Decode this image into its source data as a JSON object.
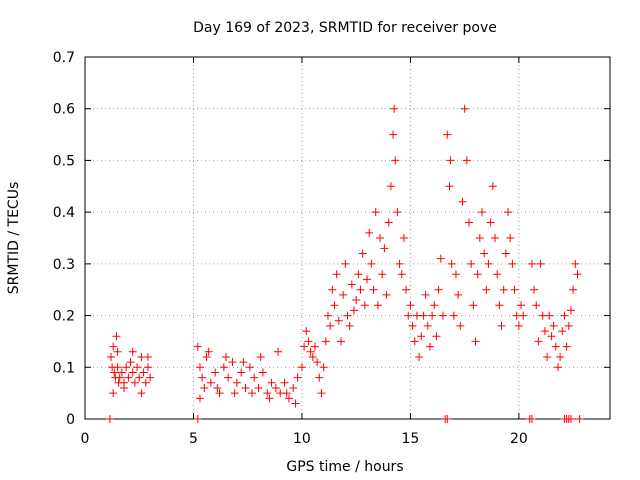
{
  "chart_data": {
    "type": "scatter",
    "title": "Day 169 of 2023, SRMTID for receiver pove",
    "xlabel": "GPS time / hours",
    "ylabel": "SRMTID / TECUs",
    "xlim": [
      0,
      24.2
    ],
    "ylim": [
      0,
      0.7
    ],
    "xticks": [
      0,
      5,
      10,
      15,
      20
    ],
    "yticks": [
      0,
      0.1,
      0.2,
      0.3,
      0.4,
      0.5,
      0.6,
      0.7
    ],
    "grid": true,
    "marker": "+",
    "color": "#ff0000",
    "series": [
      {
        "name": "SRMTID",
        "x": [
          1.2,
          1.25,
          1.3,
          1.35,
          1.4,
          1.45,
          1.5,
          1.55,
          1.6,
          1.7,
          1.8,
          1.9,
          2.0,
          2.1,
          2.2,
          2.3,
          2.4,
          2.5,
          2.6,
          2.7,
          2.8,
          2.9,
          3.0,
          1.3,
          1.5,
          1.8,
          2.2,
          2.6,
          2.9,
          5.2,
          5.3,
          5.4,
          5.5,
          5.6,
          5.8,
          6.0,
          6.2,
          6.4,
          6.6,
          6.8,
          7.0,
          7.2,
          7.4,
          7.6,
          7.8,
          8.0,
          8.2,
          8.4,
          8.6,
          8.8,
          9.0,
          9.2,
          9.4,
          9.6,
          9.8,
          5.3,
          5.7,
          6.1,
          6.5,
          6.9,
          7.3,
          7.7,
          8.1,
          8.5,
          8.9,
          9.3,
          9.7,
          10.0,
          10.1,
          10.2,
          10.3,
          10.4,
          10.5,
          10.6,
          10.7,
          10.8,
          10.9,
          11.0,
          11.1,
          11.2,
          11.3,
          11.4,
          11.5,
          11.6,
          11.7,
          11.8,
          11.9,
          12.0,
          12.1,
          12.2,
          12.3,
          12.4,
          12.5,
          12.6,
          12.7,
          12.8,
          12.9,
          13.0,
          13.1,
          13.2,
          13.3,
          13.4,
          13.5,
          13.6,
          13.7,
          13.8,
          13.9,
          14.0,
          14.1,
          14.2,
          14.25,
          14.3,
          14.4,
          14.5,
          14.6,
          14.7,
          14.8,
          14.9,
          15.0,
          15.1,
          15.2,
          15.3,
          15.4,
          15.5,
          15.6,
          15.7,
          15.8,
          15.9,
          16.0,
          16.1,
          16.2,
          16.3,
          16.4,
          16.5,
          16.7,
          16.8,
          16.85,
          16.9,
          17.0,
          17.1,
          17.2,
          17.3,
          17.4,
          17.5,
          17.6,
          17.7,
          17.8,
          17.9,
          18.0,
          18.1,
          18.2,
          18.3,
          18.4,
          18.5,
          18.6,
          18.7,
          18.8,
          18.9,
          19.0,
          19.1,
          19.2,
          19.3,
          19.4,
          19.5,
          19.6,
          19.7,
          19.8,
          19.9,
          20.0,
          20.1,
          20.2,
          20.6,
          20.7,
          20.8,
          20.9,
          21.0,
          21.1,
          21.2,
          21.3,
          21.4,
          21.5,
          21.6,
          21.7,
          21.8,
          21.9,
          22.0,
          22.1,
          22.2,
          22.3,
          22.4,
          22.5,
          22.6,
          22.7,
          1.15,
          5.2,
          16.6,
          16.7,
          20.5,
          20.6,
          22.1,
          22.2,
          22.3,
          22.4,
          22.8
        ],
        "y": [
          0.12,
          0.1,
          0.14,
          0.09,
          0.08,
          0.16,
          0.1,
          0.07,
          0.08,
          0.09,
          0.07,
          0.1,
          0.08,
          0.11,
          0.09,
          0.07,
          0.1,
          0.08,
          0.12,
          0.09,
          0.07,
          0.1,
          0.08,
          0.05,
          0.13,
          0.06,
          0.13,
          0.05,
          0.12,
          0.14,
          0.1,
          0.08,
          0.06,
          0.12,
          0.07,
          0.09,
          0.05,
          0.1,
          0.08,
          0.11,
          0.07,
          0.09,
          0.06,
          0.1,
          0.08,
          0.06,
          0.09,
          0.05,
          0.07,
          0.06,
          0.05,
          0.07,
          0.04,
          0.06,
          0.08,
          0.04,
          0.13,
          0.06,
          0.12,
          0.05,
          0.11,
          0.05,
          0.12,
          0.04,
          0.13,
          0.05,
          0.03,
          0.1,
          0.14,
          0.17,
          0.15,
          0.13,
          0.12,
          0.14,
          0.11,
          0.08,
          0.05,
          0.1,
          0.15,
          0.2,
          0.18,
          0.25,
          0.22,
          0.28,
          0.19,
          0.15,
          0.24,
          0.3,
          0.2,
          0.18,
          0.26,
          0.21,
          0.23,
          0.28,
          0.25,
          0.32,
          0.22,
          0.27,
          0.36,
          0.3,
          0.25,
          0.4,
          0.22,
          0.35,
          0.28,
          0.33,
          0.24,
          0.38,
          0.45,
          0.55,
          0.6,
          0.5,
          0.4,
          0.3,
          0.28,
          0.35,
          0.25,
          0.2,
          0.22,
          0.18,
          0.15,
          0.2,
          0.12,
          0.16,
          0.2,
          0.24,
          0.18,
          0.14,
          0.2,
          0.22,
          0.16,
          0.25,
          0.31,
          0.2,
          0.55,
          0.45,
          0.5,
          0.3,
          0.2,
          0.28,
          0.24,
          0.18,
          0.42,
          0.6,
          0.5,
          0.38,
          0.3,
          0.22,
          0.15,
          0.28,
          0.35,
          0.4,
          0.32,
          0.25,
          0.3,
          0.38,
          0.45,
          0.35,
          0.28,
          0.22,
          0.18,
          0.25,
          0.32,
          0.4,
          0.35,
          0.3,
          0.25,
          0.2,
          0.18,
          0.22,
          0.2,
          0.3,
          0.25,
          0.22,
          0.15,
          0.3,
          0.2,
          0.17,
          0.12,
          0.2,
          0.16,
          0.18,
          0.14,
          0.1,
          0.12,
          0.17,
          0.2,
          0.14,
          0.18,
          0.21,
          0.25,
          0.3,
          0.28,
          0,
          0,
          0,
          0,
          0,
          0,
          0,
          0,
          0,
          0,
          0
        ]
      }
    ]
  }
}
